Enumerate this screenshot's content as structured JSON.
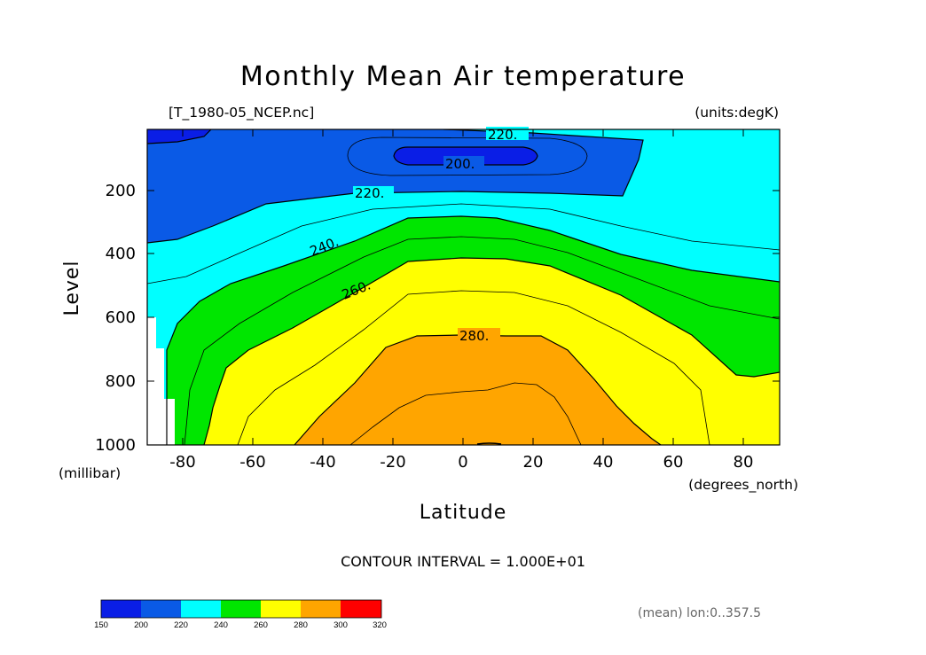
{
  "chart_data": {
    "type": "contour",
    "title": "Monthly Mean Air temperature",
    "source_file": "[T_1980-05_NCEP.nc]",
    "units": "(units:degK)",
    "xlabel": "Latitude",
    "xlabel_units": "(degrees_north)",
    "ylabel": "Level",
    "ylabel_units": "(millibar)",
    "x_ticks": [
      "-80",
      "-60",
      "-40",
      "-20",
      "0",
      "20",
      "40",
      "60",
      "80"
    ],
    "y_ticks": [
      "200",
      "400",
      "600",
      "800",
      "1000"
    ],
    "xlim": [
      -90,
      90
    ],
    "ylim": [
      1000,
      10
    ],
    "contour_interval_text": "CONTOUR INTERVAL = 1.000E+01",
    "averaging_note": "(mean) lon:0..357.5",
    "contour_labels": [
      "220.",
      "200.",
      "220.",
      "240.",
      "260.",
      "280."
    ],
    "colorbar": {
      "levels": [
        "150",
        "200",
        "220",
        "240",
        "260",
        "280",
        "300",
        "320"
      ],
      "colors": [
        "#0a1ee6",
        "#0a5ae6",
        "#00ffff",
        "#00e600",
        "#ffff00",
        "#ffa500",
        "#ff0000"
      ]
    },
    "fill_colors": {
      "below_200": "#0a1ee6",
      "200_220": "#0a5ae6",
      "220_240": "#00ffff",
      "240_260": "#00e600",
      "260_280": "#ffff00",
      "280_300": "#ffa500",
      "missing": "#ffffff"
    }
  }
}
